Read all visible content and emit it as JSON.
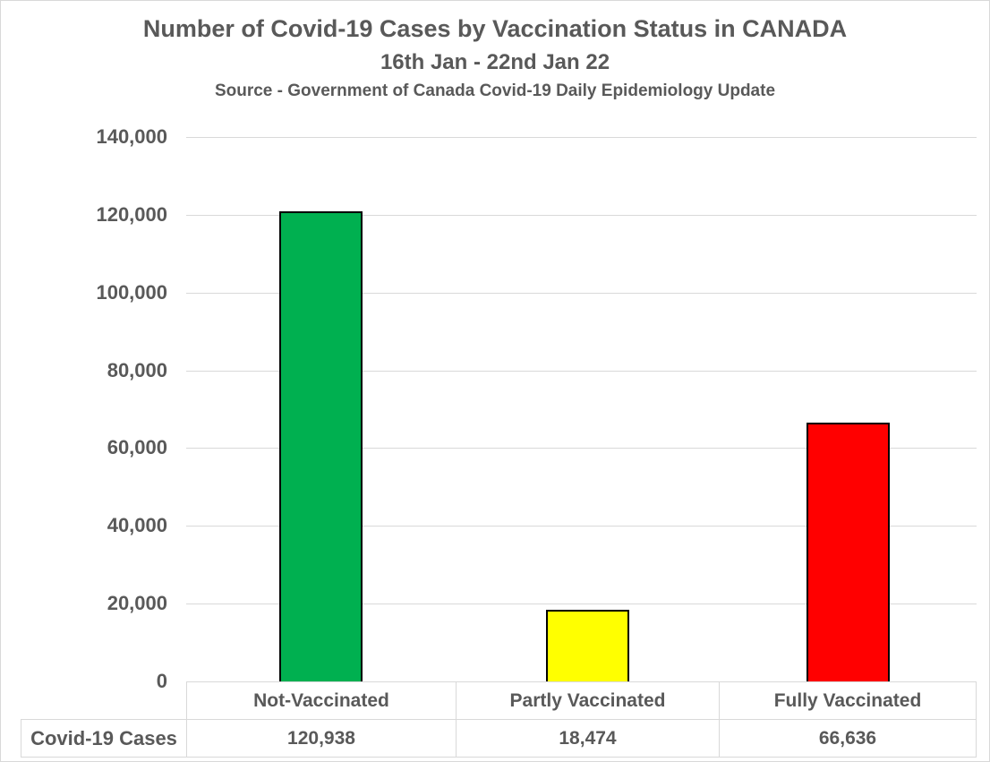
{
  "header": {
    "title": "Number of Covid-19 Cases by Vaccination Status in CANADA",
    "subtitle": "16th Jan - 22nd Jan 22",
    "source": "Source - Government of Canada Covid-19 Daily Epidemiology Update"
  },
  "chart_data": {
    "type": "bar",
    "title": "Number of Covid-19 Cases by Vaccination Status in CANADA",
    "subtitle": "16th Jan - 22nd Jan 22",
    "source_note": "Source - Government of Canada Covid-19 Daily Epidemiology Update",
    "categories": [
      "Not-Vaccinated",
      "Partly Vaccinated",
      "Fully Vaccinated"
    ],
    "values": [
      120938,
      18474,
      66636
    ],
    "values_formatted": [
      "120,938",
      "18,474",
      "66,636"
    ],
    "bar_colors": [
      "#00B050",
      "#FFFF00",
      "#FF0000"
    ],
    "bar_border_color": "#000000",
    "xlabel": "",
    "ylabel": "",
    "ylim": [
      0,
      140000
    ],
    "y_ticks": [
      0,
      20000,
      40000,
      60000,
      80000,
      100000,
      120000,
      140000
    ],
    "y_tick_labels": [
      "0",
      "20,000",
      "40,000",
      "60,000",
      "80,000",
      "100,000",
      "120,000",
      "140,000"
    ],
    "grid": "horizontal-only",
    "legend": "none",
    "data_table_row_header": "Covid-19 Cases"
  },
  "colors": {
    "text": "#595959",
    "grid": "#D9D9D9",
    "background": "#FFFFFF",
    "not_vaccinated": "#00B050",
    "partly_vaccinated": "#FFFF00",
    "fully_vaccinated": "#FF0000"
  }
}
